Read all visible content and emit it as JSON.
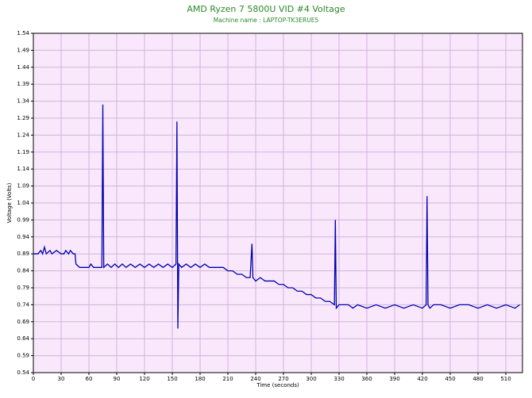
{
  "chart_data": {
    "type": "line",
    "title": "AMD Ryzen 7 5800U VID #4 Voltage",
    "subtitle": "Machine name : LAPTOP-TK3ERUE5",
    "x_label": "Time (seconds)",
    "y_label": "Voltage (Volts)",
    "xlim": [
      0,
      528
    ],
    "ylim": [
      0.54,
      1.54
    ],
    "xticks": [
      0,
      30,
      60,
      90,
      120,
      150,
      180,
      210,
      240,
      270,
      300,
      330,
      360,
      390,
      420,
      450,
      480,
      510
    ],
    "yticks": [
      0.54,
      0.59,
      0.64,
      0.69,
      0.74,
      0.79,
      0.84,
      0.89,
      0.94,
      0.99,
      1.04,
      1.09,
      1.14,
      1.19,
      1.24,
      1.29,
      1.34,
      1.39,
      1.44,
      1.49,
      1.54
    ],
    "grid": true,
    "background": "#f9e8fb",
    "grid_color": "#d3b2dc",
    "series": [
      {
        "name": "VID #4",
        "color": "#0000b0",
        "x": [
          0,
          5,
          8,
          10,
          12,
          14,
          18,
          20,
          25,
          30,
          33,
          35,
          38,
          40,
          43,
          45,
          46,
          50,
          55,
          60,
          62,
          65,
          70,
          74,
          75,
          76,
          80,
          84,
          88,
          92,
          96,
          100,
          105,
          110,
          115,
          120,
          125,
          130,
          135,
          140,
          145,
          150,
          154,
          155,
          156,
          157,
          160,
          165,
          170,
          175,
          180,
          185,
          190,
          195,
          200,
          205,
          210,
          215,
          220,
          225,
          230,
          234,
          236,
          237,
          240,
          245,
          250,
          260,
          265,
          270,
          275,
          280,
          285,
          290,
          295,
          300,
          305,
          310,
          315,
          320,
          325,
          326,
          327,
          330,
          335,
          340,
          345,
          350,
          360,
          370,
          380,
          390,
          400,
          410,
          420,
          424,
          425,
          426,
          428,
          432,
          440,
          450,
          460,
          470,
          480,
          490,
          500,
          510,
          520,
          525
        ],
        "values": [
          0.89,
          0.89,
          0.9,
          0.89,
          0.91,
          0.89,
          0.9,
          0.89,
          0.9,
          0.89,
          0.89,
          0.9,
          0.89,
          0.9,
          0.89,
          0.89,
          0.86,
          0.85,
          0.85,
          0.85,
          0.86,
          0.85,
          0.85,
          0.85,
          1.33,
          0.85,
          0.86,
          0.85,
          0.86,
          0.85,
          0.86,
          0.85,
          0.86,
          0.85,
          0.86,
          0.85,
          0.86,
          0.85,
          0.86,
          0.85,
          0.86,
          0.85,
          0.86,
          1.28,
          0.67,
          0.86,
          0.85,
          0.86,
          0.85,
          0.86,
          0.85,
          0.86,
          0.85,
          0.85,
          0.85,
          0.85,
          0.84,
          0.84,
          0.83,
          0.83,
          0.82,
          0.82,
          0.92,
          0.82,
          0.81,
          0.82,
          0.81,
          0.81,
          0.8,
          0.8,
          0.79,
          0.79,
          0.78,
          0.78,
          0.77,
          0.77,
          0.76,
          0.76,
          0.75,
          0.75,
          0.74,
          0.99,
          0.73,
          0.74,
          0.74,
          0.74,
          0.73,
          0.74,
          0.73,
          0.74,
          0.73,
          0.74,
          0.73,
          0.74,
          0.73,
          0.74,
          1.06,
          0.74,
          0.73,
          0.74,
          0.74,
          0.73,
          0.74,
          0.74,
          0.73,
          0.74,
          0.73,
          0.74,
          0.73,
          0.74
        ]
      }
    ]
  }
}
